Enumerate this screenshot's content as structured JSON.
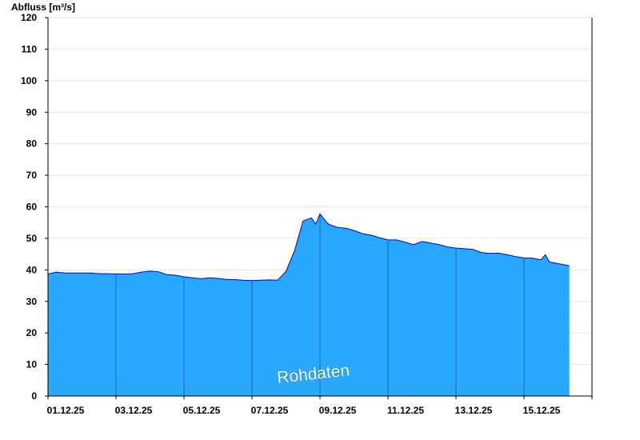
{
  "chart_data": {
    "type": "area",
    "title": "",
    "ylabel": "Abfluss [m³/s]",
    "xlabel": "",
    "ylim": [
      0,
      120
    ],
    "yticks": [
      0,
      10,
      20,
      30,
      40,
      50,
      60,
      70,
      80,
      90,
      100,
      110,
      120
    ],
    "xlim": [
      "2025-12-01T00:00",
      "2025-12-17T00:00"
    ],
    "xticks": [
      {
        "date": "2025-12-01T00:00",
        "label": "01.12.25"
      },
      {
        "date": "2025-12-03T00:00",
        "label": "03.12.25"
      },
      {
        "date": "2025-12-05T00:00",
        "label": "05.12.25"
      },
      {
        "date": "2025-12-07T00:00",
        "label": "07.12.25"
      },
      {
        "date": "2025-12-09T00:00",
        "label": "09.12.25"
      },
      {
        "date": "2025-12-11T00:00",
        "label": "11.12.25"
      },
      {
        "date": "2025-12-13T00:00",
        "label": "13.12.25"
      },
      {
        "date": "2025-12-15T00:00",
        "label": "15.12.25"
      }
    ],
    "grid": true,
    "fill_color": "#29a8ff",
    "line_color": "#0000cc",
    "annotation": "Rohdaten",
    "series": [
      {
        "x": [
          "2025-12-01T00:00",
          "2025-12-01T06:00",
          "2025-12-01T12:00",
          "2025-12-01T18:00",
          "2025-12-02T00:00",
          "2025-12-02T06:00",
          "2025-12-02T12:00",
          "2025-12-02T18:00",
          "2025-12-03T00:00",
          "2025-12-03T06:00",
          "2025-12-03T12:00",
          "2025-12-03T18:00",
          "2025-12-04T00:00",
          "2025-12-04T06:00",
          "2025-12-04T12:00",
          "2025-12-04T18:00",
          "2025-12-05T00:00",
          "2025-12-05T06:00",
          "2025-12-05T12:00",
          "2025-12-05T18:00",
          "2025-12-06T00:00",
          "2025-12-06T06:00",
          "2025-12-06T12:00",
          "2025-12-06T18:00",
          "2025-12-07T00:00",
          "2025-12-07T06:00",
          "2025-12-07T12:00",
          "2025-12-07T18:00",
          "2025-12-08T00:00",
          "2025-12-08T06:00",
          "2025-12-08T12:00",
          "2025-12-08T18:00",
          "2025-12-08T21:00",
          "2025-12-09T00:00",
          "2025-12-09T03:00",
          "2025-12-09T06:00",
          "2025-12-09T12:00",
          "2025-12-09T18:00",
          "2025-12-10T00:00",
          "2025-12-10T06:00",
          "2025-12-10T12:00",
          "2025-12-10T18:00",
          "2025-12-11T00:00",
          "2025-12-11T06:00",
          "2025-12-11T12:00",
          "2025-12-11T18:00",
          "2025-12-12T00:00",
          "2025-12-12T06:00",
          "2025-12-12T12:00",
          "2025-12-12T18:00",
          "2025-12-13T00:00",
          "2025-12-13T06:00",
          "2025-12-13T12:00",
          "2025-12-13T18:00",
          "2025-12-14T00:00",
          "2025-12-14T06:00",
          "2025-12-14T12:00",
          "2025-12-14T18:00",
          "2025-12-15T00:00",
          "2025-12-15T06:00",
          "2025-12-15T12:00",
          "2025-12-15T15:00",
          "2025-12-15T18:00",
          "2025-12-16T00:00",
          "2025-12-16T08:00"
        ],
        "values": [
          38.7,
          39.3,
          39.0,
          39.0,
          39.0,
          39.0,
          38.8,
          38.8,
          38.7,
          38.7,
          38.8,
          39.3,
          39.6,
          39.4,
          38.5,
          38.3,
          37.8,
          37.5,
          37.2,
          37.5,
          37.3,
          37.0,
          36.9,
          36.7,
          36.6,
          36.7,
          36.8,
          36.7,
          39.5,
          46.0,
          55.5,
          56.5,
          54.5,
          57.8,
          56.0,
          54.5,
          53.5,
          53.2,
          52.5,
          51.5,
          51.0,
          50.2,
          49.5,
          49.5,
          48.8,
          48.0,
          49.0,
          48.5,
          48.0,
          47.3,
          46.9,
          46.7,
          46.5,
          45.5,
          45.2,
          45.3,
          44.8,
          44.2,
          43.8,
          43.7,
          43.2,
          44.8,
          42.5,
          42.0,
          41.3
        ]
      }
    ]
  }
}
